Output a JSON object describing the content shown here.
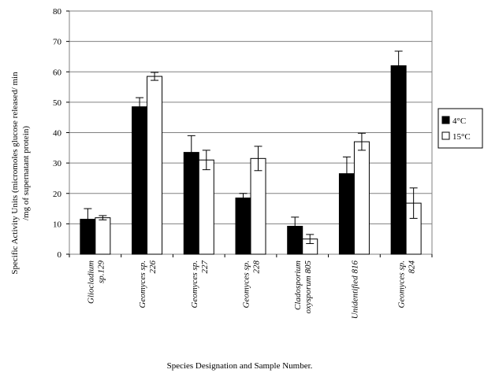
{
  "chart_data": {
    "type": "bar",
    "categories": [
      [
        "Gliocladium",
        "sp.129"
      ],
      [
        "Geomyces sp.",
        "226"
      ],
      [
        "Geomyces sp.",
        "227"
      ],
      [
        "Geomyces sp.",
        "228"
      ],
      [
        "Cladosporium",
        "oxysporum 805"
      ],
      [
        "Unidentified 816"
      ],
      [
        "Geomyces sp.",
        "824"
      ]
    ],
    "series": [
      {
        "name": "4°C",
        "color": "#000000",
        "values": [
          11.5,
          48.5,
          33.5,
          18.5,
          9.2,
          26.5,
          62.0
        ],
        "errors": [
          3.5,
          3.0,
          5.5,
          1.5,
          3.0,
          5.5,
          4.8
        ]
      },
      {
        "name": "15°C",
        "color": "#ffffff",
        "values": [
          12.0,
          58.5,
          31.0,
          31.5,
          5.0,
          37.0,
          16.8
        ],
        "errors": [
          0.7,
          1.3,
          3.2,
          4.0,
          1.5,
          2.8,
          5.0
        ]
      }
    ],
    "ylim": [
      0,
      80
    ],
    "yticks": [
      0,
      10,
      20,
      30,
      40,
      50,
      60,
      70,
      80
    ],
    "xlabel": "Species Designation and Sample Number.",
    "ylabel_lines": [
      "Specific Activity Units (micromoles glucose released/ min",
      "/mg of supernatant protein)"
    ],
    "grid": true,
    "legend_position": "right"
  }
}
